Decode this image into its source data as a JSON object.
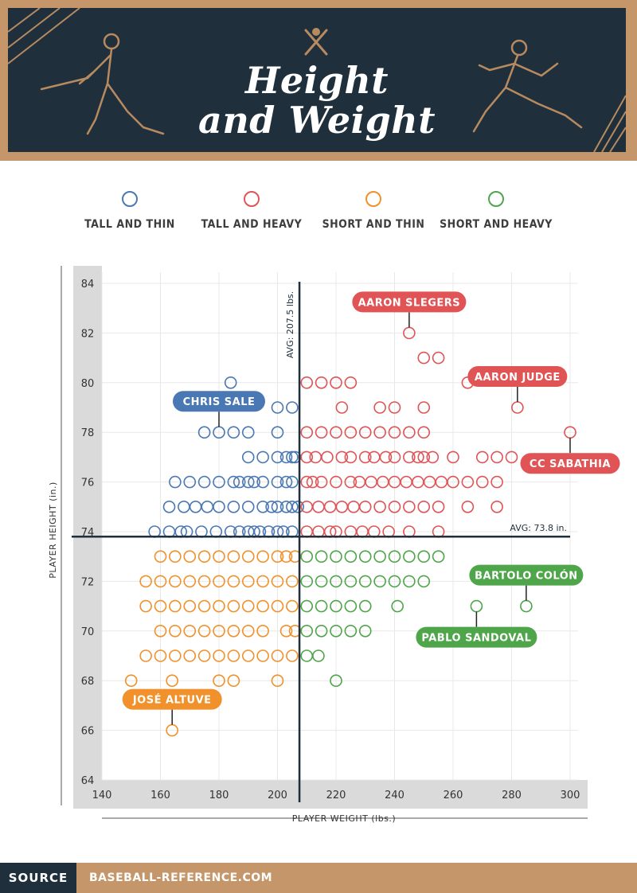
{
  "header": {
    "title_line1": "Height",
    "title_line2": "and Weight"
  },
  "legend": [
    {
      "label": "TALL AND THIN",
      "color": "#4a78b4"
    },
    {
      "label": "TALL AND HEAVY",
      "color": "#e05456"
    },
    {
      "label": "SHORT AND THIN",
      "color": "#f0912b"
    },
    {
      "label": "SHORT AND HEAVY",
      "color": "#4fa54a"
    }
  ],
  "source": {
    "label": "SOURCE",
    "text": "BASEBALL-REFERENCE.COM"
  },
  "chart_data": {
    "type": "scatter",
    "xlabel": "PLAYER WEIGHT (lbs.)",
    "ylabel": "PLAYER HEIGHT (in.)",
    "xlim": [
      140,
      300
    ],
    "ylim": [
      64,
      84
    ],
    "xticks": [
      140,
      160,
      180,
      200,
      220,
      240,
      260,
      280,
      300
    ],
    "yticks": [
      64,
      66,
      68,
      70,
      72,
      74,
      76,
      78,
      80,
      82,
      84
    ],
    "grid": true,
    "avg_weight": {
      "value": 207.5,
      "label": "AVG: 207.5 lbs."
    },
    "avg_height": {
      "value": 73.8,
      "label": "AVG: 73.8 in."
    },
    "series": [
      {
        "name": "TALL AND THIN",
        "color": "#4a78b4",
        "points": [
          [
            184,
            80
          ],
          [
            200,
            79
          ],
          [
            205,
            79
          ],
          [
            175,
            78
          ],
          [
            180,
            78
          ],
          [
            185,
            78
          ],
          [
            190,
            78
          ],
          [
            200,
            78
          ],
          [
            195,
            77
          ],
          [
            200,
            77
          ],
          [
            203,
            77
          ],
          [
            205,
            77
          ],
          [
            206,
            77
          ],
          [
            190,
            77
          ],
          [
            165,
            76
          ],
          [
            170,
            76
          ],
          [
            175,
            76
          ],
          [
            180,
            76
          ],
          [
            185,
            76
          ],
          [
            187,
            76
          ],
          [
            190,
            76
          ],
          [
            192,
            76
          ],
          [
            195,
            76
          ],
          [
            200,
            76
          ],
          [
            203,
            76
          ],
          [
            205,
            76
          ],
          [
            163,
            75
          ],
          [
            168,
            75
          ],
          [
            172,
            75
          ],
          [
            176,
            75
          ],
          [
            180,
            75
          ],
          [
            185,
            75
          ],
          [
            190,
            75
          ],
          [
            195,
            75
          ],
          [
            198,
            75
          ],
          [
            200,
            75
          ],
          [
            203,
            75
          ],
          [
            205,
            75
          ],
          [
            207,
            75
          ],
          [
            158,
            74
          ],
          [
            163,
            74
          ],
          [
            167,
            74
          ],
          [
            169,
            74
          ],
          [
            174,
            74
          ],
          [
            179,
            74
          ],
          [
            184,
            74
          ],
          [
            187,
            74
          ],
          [
            190,
            74
          ],
          [
            192,
            74
          ],
          [
            194,
            74
          ],
          [
            197,
            74
          ],
          [
            200,
            74
          ],
          [
            202,
            74
          ],
          [
            205,
            74
          ]
        ]
      },
      {
        "name": "TALL AND HEAVY",
        "color": "#e05456",
        "points": [
          [
            245,
            82
          ],
          [
            250,
            81
          ],
          [
            255,
            81
          ],
          [
            210,
            80
          ],
          [
            215,
            80
          ],
          [
            220,
            80
          ],
          [
            225,
            80
          ],
          [
            265,
            80
          ],
          [
            222,
            79
          ],
          [
            235,
            79
          ],
          [
            240,
            79
          ],
          [
            250,
            79
          ],
          [
            282,
            79
          ],
          [
            210,
            78
          ],
          [
            215,
            78
          ],
          [
            220,
            78
          ],
          [
            225,
            78
          ],
          [
            230,
            78
          ],
          [
            235,
            78
          ],
          [
            240,
            78
          ],
          [
            245,
            78
          ],
          [
            250,
            78
          ],
          [
            300,
            78
          ],
          [
            210,
            77
          ],
          [
            213,
            77
          ],
          [
            217,
            77
          ],
          [
            222,
            77
          ],
          [
            225,
            77
          ],
          [
            230,
            77
          ],
          [
            233,
            77
          ],
          [
            237,
            77
          ],
          [
            240,
            77
          ],
          [
            245,
            77
          ],
          [
            248,
            77
          ],
          [
            250,
            77
          ],
          [
            253,
            77
          ],
          [
            260,
            77
          ],
          [
            270,
            77
          ],
          [
            275,
            77
          ],
          [
            280,
            77
          ],
          [
            210,
            76
          ],
          [
            212,
            76
          ],
          [
            215,
            76
          ],
          [
            220,
            76
          ],
          [
            225,
            76
          ],
          [
            228,
            76
          ],
          [
            232,
            76
          ],
          [
            236,
            76
          ],
          [
            240,
            76
          ],
          [
            244,
            76
          ],
          [
            248,
            76
          ],
          [
            252,
            76
          ],
          [
            256,
            76
          ],
          [
            260,
            76
          ],
          [
            265,
            76
          ],
          [
            270,
            76
          ],
          [
            275,
            76
          ],
          [
            210,
            75
          ],
          [
            214,
            75
          ],
          [
            218,
            75
          ],
          [
            222,
            75
          ],
          [
            226,
            75
          ],
          [
            230,
            75
          ],
          [
            235,
            75
          ],
          [
            240,
            75
          ],
          [
            245,
            75
          ],
          [
            250,
            75
          ],
          [
            255,
            75
          ],
          [
            265,
            75
          ],
          [
            275,
            75
          ],
          [
            210,
            74
          ],
          [
            214,
            74
          ],
          [
            218,
            74
          ],
          [
            220,
            74
          ],
          [
            225,
            74
          ],
          [
            229,
            74
          ],
          [
            233,
            74
          ],
          [
            238,
            74
          ],
          [
            245,
            74
          ],
          [
            255,
            74
          ]
        ]
      },
      {
        "name": "SHORT AND THIN",
        "color": "#f0912b",
        "points": [
          [
            160,
            73
          ],
          [
            165,
            73
          ],
          [
            170,
            73
          ],
          [
            175,
            73
          ],
          [
            180,
            73
          ],
          [
            185,
            73
          ],
          [
            190,
            73
          ],
          [
            195,
            73
          ],
          [
            200,
            73
          ],
          [
            203,
            73
          ],
          [
            206,
            73
          ],
          [
            155,
            72
          ],
          [
            160,
            72
          ],
          [
            165,
            72
          ],
          [
            170,
            72
          ],
          [
            175,
            72
          ],
          [
            180,
            72
          ],
          [
            185,
            72
          ],
          [
            190,
            72
          ],
          [
            195,
            72
          ],
          [
            200,
            72
          ],
          [
            205,
            72
          ],
          [
            155,
            71
          ],
          [
            160,
            71
          ],
          [
            165,
            71
          ],
          [
            170,
            71
          ],
          [
            175,
            71
          ],
          [
            180,
            71
          ],
          [
            185,
            71
          ],
          [
            190,
            71
          ],
          [
            195,
            71
          ],
          [
            200,
            71
          ],
          [
            205,
            71
          ],
          [
            160,
            70
          ],
          [
            165,
            70
          ],
          [
            170,
            70
          ],
          [
            175,
            70
          ],
          [
            180,
            70
          ],
          [
            185,
            70
          ],
          [
            190,
            70
          ],
          [
            195,
            70
          ],
          [
            203,
            70
          ],
          [
            206,
            70
          ],
          [
            155,
            69
          ],
          [
            160,
            69
          ],
          [
            165,
            69
          ],
          [
            170,
            69
          ],
          [
            175,
            69
          ],
          [
            180,
            69
          ],
          [
            185,
            69
          ],
          [
            190,
            69
          ],
          [
            195,
            69
          ],
          [
            200,
            69
          ],
          [
            205,
            69
          ],
          [
            150,
            68
          ],
          [
            164,
            68
          ],
          [
            180,
            68
          ],
          [
            185,
            68
          ],
          [
            200,
            68
          ],
          [
            164,
            66
          ]
        ]
      },
      {
        "name": "SHORT AND HEAVY",
        "color": "#4fa54a",
        "points": [
          [
            210,
            73
          ],
          [
            215,
            73
          ],
          [
            220,
            73
          ],
          [
            225,
            73
          ],
          [
            230,
            73
          ],
          [
            235,
            73
          ],
          [
            240,
            73
          ],
          [
            245,
            73
          ],
          [
            250,
            73
          ],
          [
            255,
            73
          ],
          [
            210,
            72
          ],
          [
            215,
            72
          ],
          [
            220,
            72
          ],
          [
            225,
            72
          ],
          [
            230,
            72
          ],
          [
            235,
            72
          ],
          [
            240,
            72
          ],
          [
            245,
            72
          ],
          [
            250,
            72
          ],
          [
            210,
            71
          ],
          [
            215,
            71
          ],
          [
            220,
            71
          ],
          [
            225,
            71
          ],
          [
            230,
            71
          ],
          [
            241,
            71
          ],
          [
            268,
            71
          ],
          [
            285,
            71
          ],
          [
            210,
            70
          ],
          [
            215,
            70
          ],
          [
            220,
            70
          ],
          [
            225,
            70
          ],
          [
            230,
            70
          ],
          [
            210,
            69
          ],
          [
            214,
            69
          ],
          [
            220,
            68
          ]
        ]
      }
    ],
    "annotations": [
      {
        "label": "AARON SLEGERS",
        "x": 245,
        "y": 82,
        "color": "#e05456",
        "side": "above"
      },
      {
        "label": "AARON JUDGE",
        "x": 282,
        "y": 79,
        "color": "#e05456",
        "side": "above"
      },
      {
        "label": "CC SABATHIA",
        "x": 300,
        "y": 78,
        "color": "#e05456",
        "side": "below"
      },
      {
        "label": "CHRIS SALE",
        "x": 180,
        "y": 78,
        "color": "#4a78b4",
        "side": "above"
      },
      {
        "label": "BARTOLO COLÓN",
        "x": 285,
        "y": 71,
        "color": "#4fa54a",
        "side": "above"
      },
      {
        "label": "PABLO SANDOVAL",
        "x": 268,
        "y": 71,
        "color": "#4fa54a",
        "side": "below"
      },
      {
        "label": "JOSÉ ALTUVE",
        "x": 164,
        "y": 66,
        "color": "#f0912b",
        "side": "above"
      }
    ]
  }
}
